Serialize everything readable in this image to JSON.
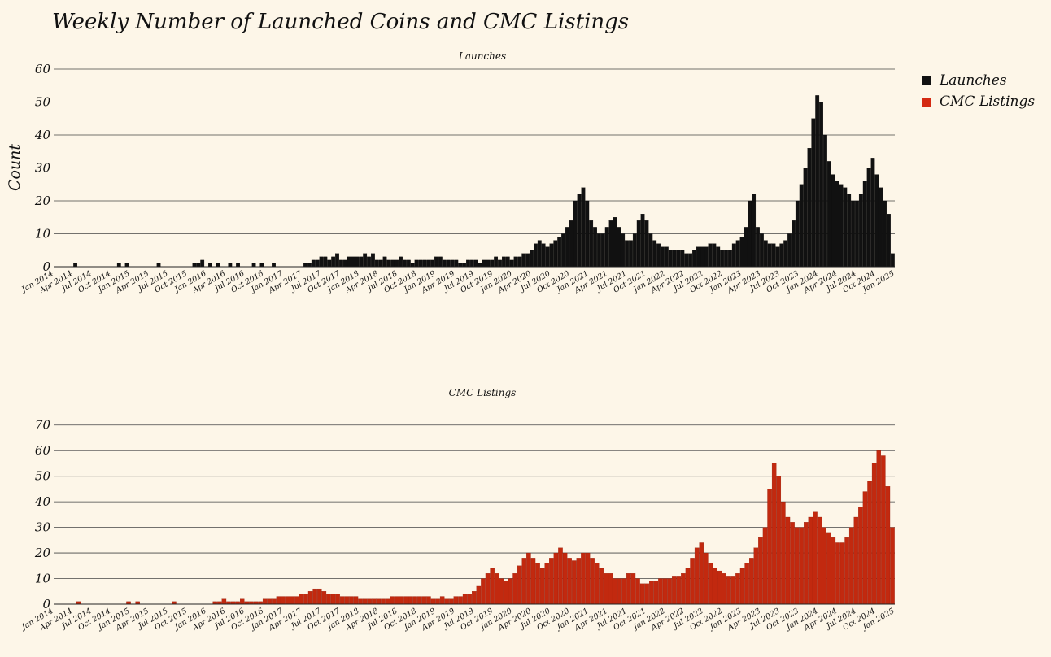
{
  "figure": {
    "title": "Weekly Number of Launched Coins and CMC Listings",
    "ylabel": "Count",
    "legend": {
      "placement": "right",
      "items": [
        {
          "label": "Launches",
          "color": "#111111"
        },
        {
          "label": "CMC Listings",
          "color": "#d42a12"
        }
      ]
    }
  },
  "chart_data": [
    {
      "type": "bar",
      "title": "Launches",
      "xlabel": "",
      "ylabel": "Count",
      "series_name": "Launches",
      "color": "#111111",
      "edge_color": "#000000",
      "ylim": [
        0,
        60
      ],
      "yticks": [
        0,
        10,
        20,
        30,
        40,
        50,
        60
      ],
      "grid": true,
      "x_tick_labels": [
        "Jan 2014",
        "Apr 2014",
        "Jul 2014",
        "Oct 2014",
        "Jan 2015",
        "Apr 2015",
        "Jul 2015",
        "Oct 2015",
        "Jan 2016",
        "Apr 2016",
        "Jul 2016",
        "Oct 2016",
        "Jan 2017",
        "Apr 2017",
        "Jul 2017",
        "Oct 2017",
        "Jan 2018",
        "Apr 2018",
        "Jul 2018",
        "Oct 2018",
        "Jan 2019",
        "Apr 2019",
        "Jul 2019",
        "Oct 2019",
        "Jan 2020",
        "Apr 2020",
        "Jul 2020",
        "Oct 2020",
        "Jan 2021",
        "Apr 2021",
        "Jul 2021",
        "Oct 2021",
        "Jan 2022",
        "Apr 2022",
        "Jul 2022",
        "Oct 2022",
        "Jan 2023",
        "Apr 2023",
        "Jul 2023",
        "Oct 2023",
        "Jan 2024",
        "Apr 2024",
        "Jul 2024",
        "Oct 2024",
        "Jan 2025"
      ],
      "x_start": "2014-01",
      "points_per_period": "monthly",
      "values": [
        0,
        0,
        0,
        0,
        0,
        1,
        0,
        0,
        0,
        0,
        0,
        0,
        0,
        0,
        0,
        0,
        1,
        0,
        1,
        0,
        0,
        0,
        0,
        0,
        0,
        0,
        1,
        0,
        0,
        0,
        0,
        0,
        0,
        0,
        0,
        1,
        1,
        2,
        0,
        1,
        0,
        1,
        0,
        0,
        1,
        0,
        1,
        0,
        0,
        0,
        1,
        0,
        1,
        0,
        0,
        1,
        0,
        0,
        0,
        0,
        0,
        0,
        0,
        1,
        1,
        2,
        2,
        3,
        3,
        2,
        3,
        4,
        2,
        2,
        3,
        3,
        3,
        3,
        4,
        3,
        4,
        2,
        2,
        3,
        2,
        2,
        2,
        3,
        2,
        2,
        1,
        2,
        2,
        2,
        2,
        2,
        3,
        3,
        2,
        2,
        2,
        2,
        1,
        1,
        2,
        2,
        2,
        1,
        2,
        2,
        2,
        3,
        2,
        3,
        3,
        2,
        3,
        3,
        4,
        4,
        5,
        7,
        8,
        7,
        6,
        7,
        8,
        9,
        10,
        12,
        14,
        20,
        22,
        24,
        20,
        14,
        12,
        10,
        10,
        12,
        14,
        15,
        12,
        10,
        8,
        8,
        10,
        14,
        16,
        14,
        10,
        8,
        7,
        6,
        6,
        5,
        5,
        5,
        5,
        4,
        4,
        5,
        6,
        6,
        6,
        7,
        7,
        6,
        5,
        5,
        5,
        7,
        8,
        9,
        12,
        20,
        22,
        12,
        10,
        8,
        7,
        7,
        6,
        7,
        8,
        10,
        14,
        20,
        25,
        30,
        36,
        45,
        52,
        50,
        40,
        32,
        28,
        26,
        25,
        24,
        22,
        20,
        20,
        22,
        26,
        30,
        33,
        28,
        24,
        20,
        16,
        4
      ]
    },
    {
      "type": "bar",
      "title": "CMC Listings",
      "xlabel": "",
      "ylabel": "",
      "series_name": "CMC Listings",
      "color": "#c2290f",
      "edge_color": "#8f1a08",
      "ylim": [
        0,
        75
      ],
      "yticks": [
        0,
        10,
        20,
        30,
        40,
        50,
        60,
        70
      ],
      "grid": true,
      "x_tick_labels": [
        "Jan 2014",
        "Apr 2014",
        "Jul 2014",
        "Oct 2014",
        "Jan 2015",
        "Apr 2015",
        "Jul 2015",
        "Oct 2015",
        "Jan 2016",
        "Apr 2016",
        "Jul 2016",
        "Oct 2016",
        "Jan 2017",
        "Apr 2017",
        "Jul 2017",
        "Oct 2017",
        "Jan 2018",
        "Apr 2018",
        "Jul 2018",
        "Oct 2018",
        "Jan 2019",
        "Apr 2019",
        "Jul 2019",
        "Oct 2019",
        "Jan 2020",
        "Apr 2020",
        "Jul 2020",
        "Oct 2020",
        "Jan 2021",
        "Apr 2021",
        "Jul 2021",
        "Oct 2021",
        "Jan 2022",
        "Apr 2022",
        "Jul 2022",
        "Oct 2022",
        "Jan 2023",
        "Apr 2023",
        "Jul 2023",
        "Oct 2023",
        "Jan 2024",
        "Apr 2024",
        "Jul 2024",
        "Oct 2024",
        "Jan 2025"
      ],
      "x_start": "2014-01",
      "points_per_period": "monthly",
      "values": [
        0,
        0,
        0,
        0,
        0,
        1,
        0,
        0,
        0,
        0,
        0,
        0,
        0,
        0,
        0,
        0,
        1,
        0,
        1,
        0,
        0,
        0,
        0,
        0,
        0,
        0,
        1,
        0,
        0,
        0,
        0,
        0,
        0,
        0,
        0,
        1,
        1,
        2,
        1,
        1,
        1,
        2,
        1,
        1,
        1,
        1,
        2,
        2,
        2,
        3,
        3,
        3,
        3,
        3,
        4,
        4,
        5,
        6,
        6,
        5,
        4,
        4,
        4,
        3,
        3,
        3,
        3,
        2,
        2,
        2,
        2,
        2,
        2,
        2,
        3,
        3,
        3,
        3,
        3,
        3,
        3,
        3,
        3,
        2,
        2,
        3,
        2,
        2,
        3,
        3,
        4,
        4,
        5,
        7,
        10,
        12,
        14,
        12,
        10,
        9,
        10,
        12,
        15,
        18,
        20,
        18,
        16,
        14,
        16,
        18,
        20,
        22,
        20,
        18,
        17,
        18,
        20,
        20,
        18,
        16,
        14,
        12,
        12,
        10,
        10,
        10,
        12,
        12,
        10,
        8,
        8,
        9,
        9,
        10,
        10,
        10,
        11,
        11,
        12,
        14,
        18,
        22,
        24,
        20,
        16,
        14,
        13,
        12,
        11,
        11,
        12,
        14,
        16,
        18,
        22,
        26,
        30,
        45,
        55,
        50,
        40,
        34,
        32,
        30,
        30,
        32,
        34,
        36,
        34,
        30,
        28,
        26,
        24,
        24,
        26,
        30,
        34,
        38,
        44,
        48,
        55,
        60,
        58,
        46,
        30
      ]
    }
  ]
}
